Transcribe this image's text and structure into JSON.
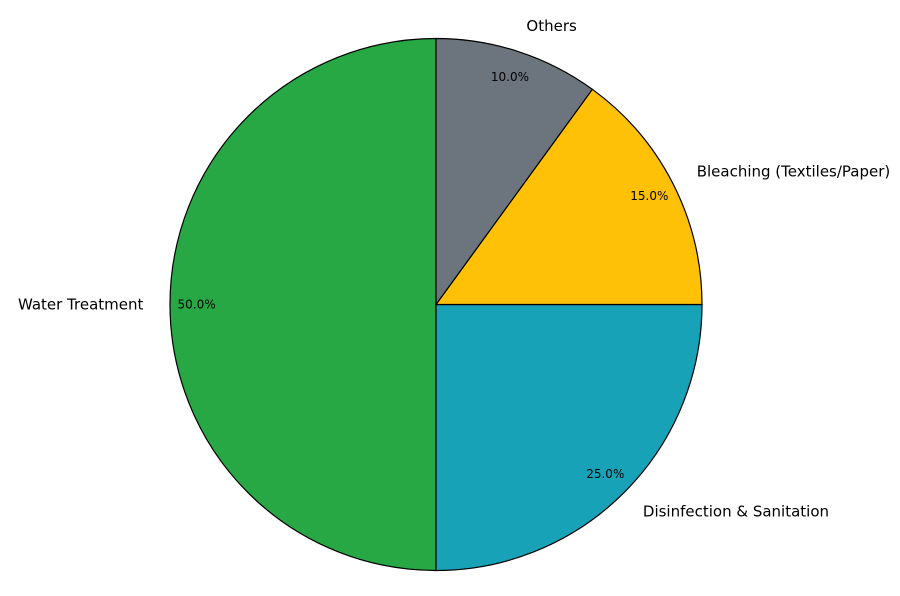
{
  "chart_data": {
    "type": "pie",
    "categories": [
      "Water Treatment",
      "Disinfection & Sanitation",
      "Bleaching (Textiles/Paper)",
      "Others"
    ],
    "values": [
      50.0,
      25.0,
      15.0,
      10.0
    ],
    "value_labels": [
      "50.0%",
      "25.0%",
      "15.0%",
      "10.0%"
    ],
    "colors": [
      "#28a745",
      "#17a2b8",
      "#ffc107",
      "#6c757d"
    ],
    "start_angle_deg": 90,
    "direction": "counterclockwise",
    "legend": "none"
  }
}
